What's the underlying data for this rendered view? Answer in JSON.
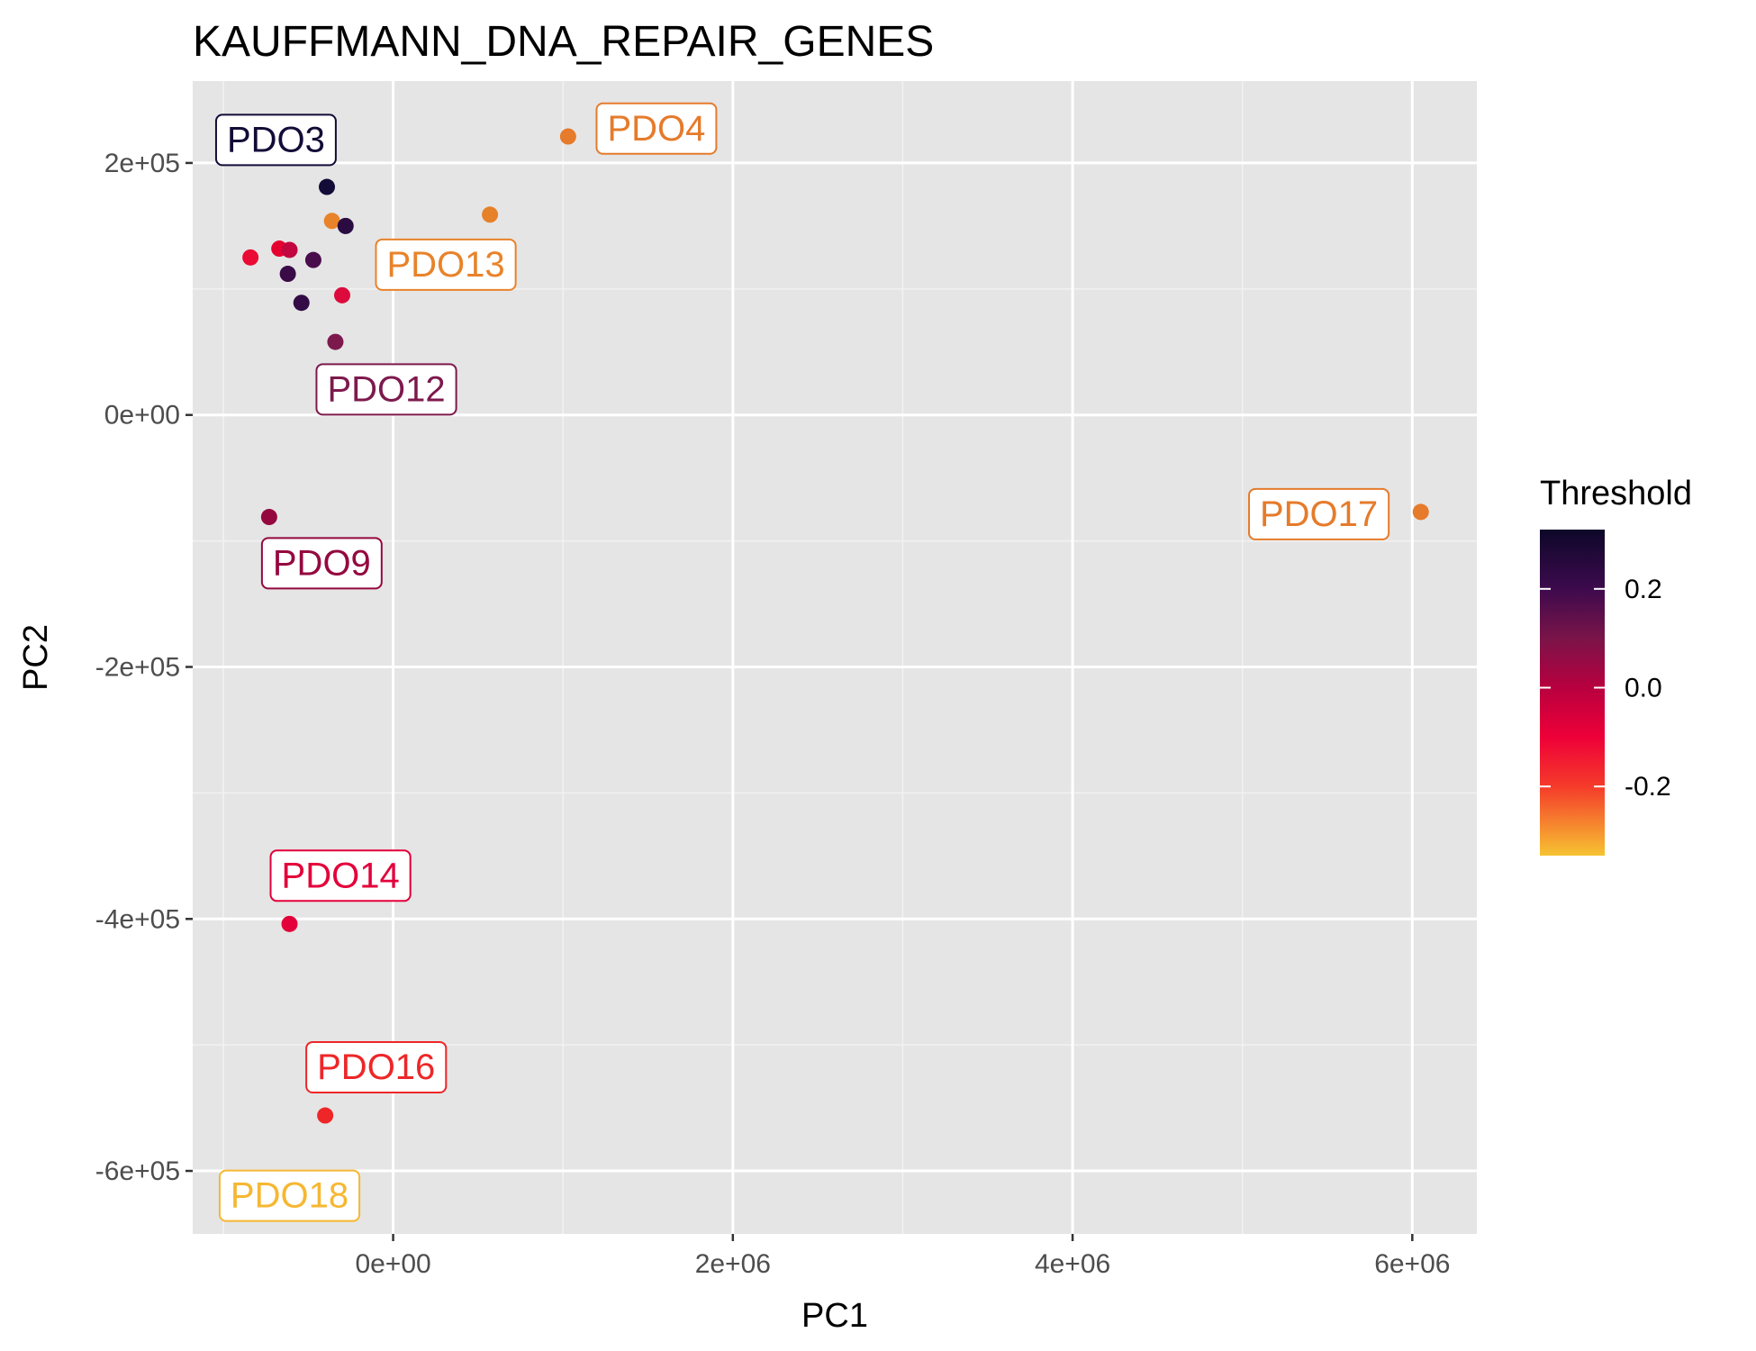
{
  "chart_data": {
    "type": "scatter",
    "title": "KAUFFMANN_DNA_REPAIR_GENES",
    "xlabel": "PC1",
    "ylabel": "PC2",
    "xlim": [
      -1180000,
      6380000
    ],
    "ylim": [
      -650000,
      265000
    ],
    "x_ticks": [
      0,
      2000000,
      4000000,
      6000000
    ],
    "x_tick_labels": [
      "0e+00",
      "2e+06",
      "4e+06",
      "6e+06"
    ],
    "y_ticks": [
      -600000,
      -400000,
      -200000,
      0,
      200000
    ],
    "y_tick_labels": [
      "-6e+05",
      "-4e+05",
      "-2e+05",
      "0e+00",
      "2e+05"
    ],
    "grid": true,
    "legend": {
      "title": "Threshold",
      "placement": "right",
      "range": [
        -0.34,
        0.32
      ],
      "ticks": [
        0.2,
        0.0,
        -0.2
      ],
      "tick_labels": [
        "0.2",
        "0.0",
        "-0.2"
      ],
      "gradient_stops": [
        {
          "value": 0.32,
          "color": "#0d0829"
        },
        {
          "value": 0.2,
          "color": "#3d0a4d"
        },
        {
          "value": 0.1,
          "color": "#7a1449"
        },
        {
          "value": 0.0,
          "color": "#b8003f"
        },
        {
          "value": -0.1,
          "color": "#ee0038"
        },
        {
          "value": -0.2,
          "color": "#f53b2a"
        },
        {
          "value": -0.34,
          "color": "#f6c332"
        }
      ]
    },
    "points": [
      {
        "x": -390000,
        "y": 181000,
        "threshold": 0.3,
        "color": "#120c37"
      },
      {
        "x": 1030000,
        "y": 221000,
        "threshold": -0.27,
        "color": "#e57b2b"
      },
      {
        "x": -360000,
        "y": 154000,
        "threshold": -0.27,
        "color": "#e8832a"
      },
      {
        "x": 570000,
        "y": 159000,
        "threshold": -0.27,
        "color": "#e68029"
      },
      {
        "x": -280000,
        "y": 150000,
        "threshold": 0.25,
        "color": "#2a0b42"
      },
      {
        "x": -670000,
        "y": 132000,
        "threshold": -0.1,
        "color": "#e5002f"
      },
      {
        "x": -610000,
        "y": 131000,
        "threshold": -0.02,
        "color": "#c2063f"
      },
      {
        "x": -840000,
        "y": 125000,
        "threshold": -0.15,
        "color": "#ea0a33"
      },
      {
        "x": -470000,
        "y": 123000,
        "threshold": 0.18,
        "color": "#4a0d4c"
      },
      {
        "x": -620000,
        "y": 112000,
        "threshold": 0.2,
        "color": "#3a0b47"
      },
      {
        "x": -300000,
        "y": 95000,
        "threshold": -0.05,
        "color": "#dc0b3b"
      },
      {
        "x": -540000,
        "y": 89000,
        "threshold": 0.22,
        "color": "#330b46"
      },
      {
        "x": -340000,
        "y": 58000,
        "threshold": 0.1,
        "color": "#7d1a4d"
      },
      {
        "x": -730000,
        "y": -81000,
        "threshold": 0.05,
        "color": "#95083f"
      },
      {
        "x": 6050000,
        "y": -77000,
        "threshold": -0.27,
        "color": "#e57b2b"
      },
      {
        "x": -610000,
        "y": -404000,
        "threshold": -0.08,
        "color": "#e3003a"
      },
      {
        "x": -400000,
        "y": -556000,
        "threshold": -0.18,
        "color": "#ee2628"
      }
    ],
    "labels": [
      {
        "text": "PDO3",
        "x": -690000,
        "y": 219000,
        "color": "#120c37"
      },
      {
        "text": "PDO4",
        "x": 1550000,
        "y": 228000,
        "color": "#e57b2b"
      },
      {
        "text": "PDO13",
        "x": 310000,
        "y": 120000,
        "color": "#e8832a"
      },
      {
        "text": "PDO12",
        "x": -40000,
        "y": 21000,
        "color": "#7d1a4d"
      },
      {
        "text": "PDO17",
        "x": 5450000,
        "y": -78000,
        "color": "#e57b2b"
      },
      {
        "text": "PDO9",
        "x": -420000,
        "y": -117000,
        "color": "#95083f"
      },
      {
        "text": "PDO14",
        "x": -310000,
        "y": -365000,
        "color": "#e3003a"
      },
      {
        "text": "PDO16",
        "x": -100000,
        "y": -517000,
        "color": "#ee2628"
      },
      {
        "text": "PDO18",
        "x": -610000,
        "y": -619000,
        "color": "#f6b732"
      }
    ]
  }
}
